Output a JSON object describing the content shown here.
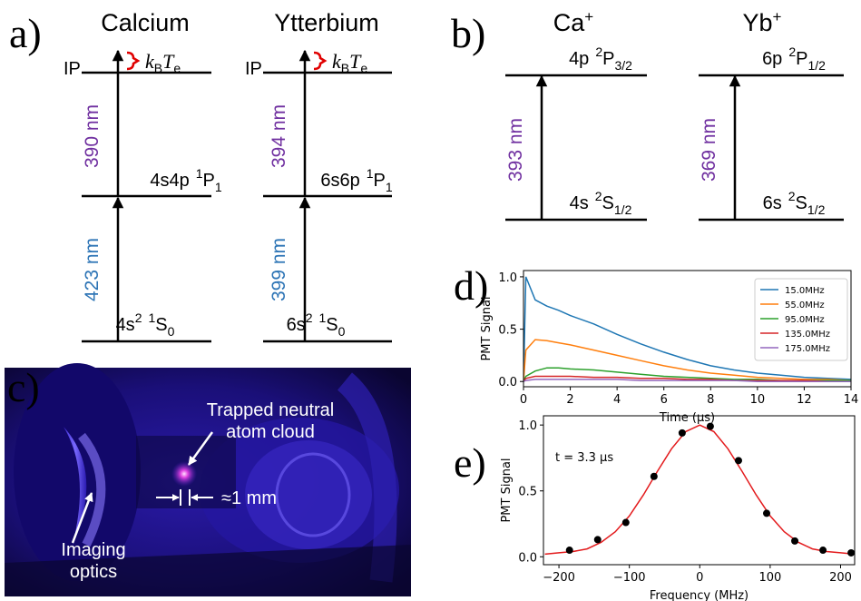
{
  "panel_labels": [
    "a)",
    "b)",
    "c)",
    "d)",
    "e)"
  ],
  "neutral_levels": [
    {
      "element": "Calcium",
      "ip": "IP",
      "thermal": {
        "k": "k",
        "k_sub": "B",
        "t": "T",
        "t_sub": "e"
      },
      "upper": {
        "config": "4s4p",
        "sup": "1",
        "term": "P",
        "sub": "1"
      },
      "ground": {
        "config": "4s",
        "config_sup": "2",
        "sup": "1",
        "term": "S",
        "sub": "0"
      },
      "upper_wavelength": "390 nm",
      "lower_wavelength": "423 nm"
    },
    {
      "element": "Ytterbium",
      "ip": "IP",
      "thermal": {
        "k": "k",
        "k_sub": "B",
        "t": "T",
        "t_sub": "e"
      },
      "upper": {
        "config": "6s6p",
        "sup": "1",
        "term": "P",
        "sub": "1"
      },
      "ground": {
        "config": "6s",
        "config_sup": "2",
        "sup": "1",
        "term": "S",
        "sub": "0"
      },
      "upper_wavelength": "394 nm",
      "lower_wavelength": "399 nm"
    }
  ],
  "ion_levels": [
    {
      "ion": "Ca",
      "charge": "+",
      "upper": {
        "config": "4p",
        "sup": "2",
        "term": "P",
        "sub": "3/2"
      },
      "lower": {
        "config": "4s",
        "sup": "2",
        "term": "S",
        "sub": "1/2"
      },
      "wavelength": "393 nm"
    },
    {
      "ion": "Yb",
      "charge": "+",
      "upper": {
        "config": "6p",
        "sup": "2",
        "term": "P",
        "sub": "1/2"
      },
      "lower": {
        "config": "6s",
        "sup": "2",
        "term": "S",
        "sub": "1/2"
      },
      "wavelength": "369 nm"
    }
  ],
  "photo": {
    "callouts": [
      [
        "Trapped neutral",
        "atom cloud"
      ],
      [
        "Imaging",
        "optics"
      ]
    ],
    "scale": "≈1 mm"
  },
  "chart_data": [
    {
      "type": "line",
      "ylabel": "PMT Signal",
      "xlabel": "Time (μs)",
      "x": [
        0,
        0.1,
        0.5,
        1,
        1.5,
        2,
        3,
        4,
        5,
        6,
        7,
        8,
        9,
        10,
        11,
        12,
        13,
        14
      ],
      "series": [
        {
          "name": "15.0MHz",
          "color": "#1f77b4",
          "values": [
            0,
            1.0,
            0.78,
            0.72,
            0.68,
            0.63,
            0.55,
            0.45,
            0.36,
            0.28,
            0.21,
            0.15,
            0.11,
            0.08,
            0.06,
            0.04,
            0.03,
            0.02
          ]
        },
        {
          "name": "55.0MHz",
          "color": "#ff7f0e",
          "values": [
            0,
            0.3,
            0.4,
            0.39,
            0.37,
            0.35,
            0.3,
            0.25,
            0.2,
            0.15,
            0.11,
            0.08,
            0.06,
            0.04,
            0.03,
            0.02,
            0.02,
            0.01
          ]
        },
        {
          "name": "95.0MHz",
          "color": "#2ca02c",
          "values": [
            0,
            0.05,
            0.1,
            0.13,
            0.13,
            0.12,
            0.11,
            0.09,
            0.07,
            0.05,
            0.04,
            0.03,
            0.02,
            0.02,
            0.01,
            0.01,
            0.01,
            0.01
          ]
        },
        {
          "name": "135.0MHz",
          "color": "#d62728",
          "values": [
            0,
            0.03,
            0.05,
            0.05,
            0.05,
            0.05,
            0.04,
            0.04,
            0.03,
            0.03,
            0.02,
            0.02,
            0.01,
            0.01,
            0.01,
            0.01,
            0.0,
            0.0
          ]
        },
        {
          "name": "175.0MHz",
          "color": "#9467bd",
          "values": [
            0,
            0.01,
            0.02,
            0.02,
            0.02,
            0.02,
            0.02,
            0.02,
            0.01,
            0.01,
            0.01,
            0.01,
            0.01,
            0.0,
            0.0,
            0.0,
            0.0,
            0.0
          ]
        }
      ],
      "xlim": [
        0,
        14
      ],
      "ylim": [
        -0.05,
        1.06
      ],
      "xticks": [
        0,
        2,
        4,
        6,
        8,
        10,
        12,
        14
      ],
      "yticks": [
        {
          "value": 0,
          "label": "0.0"
        },
        {
          "value": 0.5,
          "label": "0.5"
        },
        {
          "value": 1,
          "label": "1.0"
        }
      ],
      "legend": "upper right"
    },
    {
      "type": "scatter",
      "ylabel": "PMT Signal",
      "xlabel": "Frequency (MHz)",
      "annotation": "t = 3.3 μs",
      "series": [
        {
          "type": "scatter",
          "color": "#000000",
          "x": [
            -185,
            -145,
            -105,
            -65,
            -25,
            15,
            55,
            95,
            135,
            175,
            215
          ],
          "values": [
            0.05,
            0.13,
            0.26,
            0.61,
            0.94,
            0.99,
            0.73,
            0.33,
            0.12,
            0.05,
            0.03
          ]
        },
        {
          "type": "line",
          "color": "#e31a1c",
          "x": [
            -220,
            -200,
            -180,
            -160,
            -140,
            -120,
            -100,
            -80,
            -60,
            -40,
            -20,
            0,
            20,
            40,
            60,
            80,
            100,
            120,
            140,
            160,
            180,
            200,
            220
          ],
          "values": [
            0.02,
            0.03,
            0.04,
            0.06,
            0.11,
            0.19,
            0.31,
            0.47,
            0.65,
            0.82,
            0.95,
            1.0,
            0.95,
            0.82,
            0.65,
            0.47,
            0.31,
            0.19,
            0.11,
            0.06,
            0.04,
            0.03,
            0.02
          ]
        }
      ],
      "xlim": [
        -222,
        220
      ],
      "ylim": [
        -0.06,
        1.07
      ],
      "xticks": [
        {
          "value": -200,
          "label": "−200"
        },
        {
          "value": -100,
          "label": "−100"
        },
        0,
        100,
        200
      ],
      "yticks": [
        {
          "value": 0,
          "label": "0.0"
        },
        {
          "value": 0.5,
          "label": "0.5"
        },
        {
          "value": 1,
          "label": "1.0"
        }
      ]
    }
  ]
}
